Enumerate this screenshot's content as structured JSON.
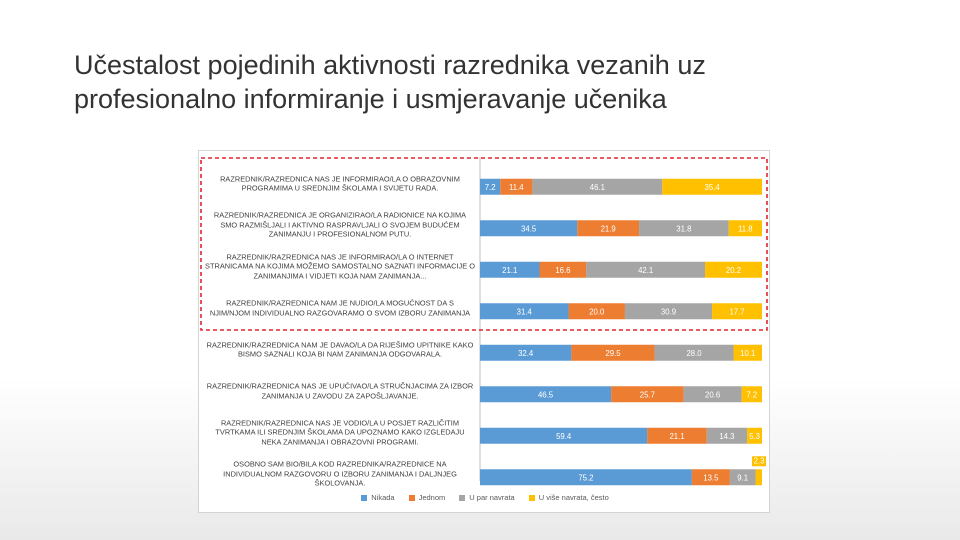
{
  "slide": {
    "title": "Učestalost pojedinih aktivnosti razrednika vezanih uz profesionalno informiranje i usmjeravanje učenika"
  },
  "chart_data": {
    "type": "bar",
    "orientation": "horizontal",
    "stacked": "percent",
    "categories": [
      "RAZREDNIK/RAZREDNICA NAS JE INFORMIRAO/LA O OBRAZOVNIM PROGRAMIMA U SREDNJIM ŠKOLAMA I SVIJETU RADA.",
      "RAZREDNIK/RAZREDNICA JE ORGANIZIRAO/LA RADIONICE NA KOJIMA SMO RAZMIŠLJALI I AKTIVNO RASPRAVLJALI O SVOJEM BUDUĆEM ZANIMANJU I PROFESIONALNOM PUTU.",
      "RAZREDNIK/RAZREDNICA NAS JE INFORMIRAO/LA O INTERNET STRANICAMA NA KOJIMA MOŽEMO SAMOSTALNO SAZNATI INFORMACIJE O ZANIMANJIMA I VIDJETI KOJA NAM ZANIMANJA...",
      "RAZREDNIK/RAZREDNICA NAM JE NUDIO/LA MOGUĆNOST DA S NJIM/NJOM INDIVIDUALNO RAZGOVARAMO O SVOM IZBORU ZANIMANJA",
      "RAZREDNIK/RAZREDNICA NAM JE DAVAO/LA DA RIJEŠIMO UPITNIKE KAKO BISMO SAZNALI KOJA BI NAM ZANIMANJA ODGOVARALA.",
      "RAZREDNIK/RAZREDNICA NAS JE UPUĆIVAO/LA STRUČNJACIMA ZA IZBOR ZANIMANJA U ZAVODU ZA ZAPOŠLJAVANJE.",
      "RAZREDNIK/RAZREDNICA NAS JE VODIO/LA U POSJET RAZLIČITIM TVRTKAMA ILI SREDNJIM ŠKOLAMA DA UPOZNAMO KAKO IZGLEDAJU NEKA ZANIMANJA I OBRAZOVNI PROGRAMI.",
      "OSOBNO SAM BIO/BILA KOD RAZREDNIKA/RAZREDNICE NA INDIVIDUALNOM RAZGOVORU O IZBORU ZANIMANJA I DALJNJEG ŠKOLOVANJA."
    ],
    "series": [
      {
        "name": "Nikada",
        "color": "#5b9bd5",
        "values": [
          7.2,
          34.5,
          21.1,
          31.4,
          32.4,
          46.5,
          59.4,
          75.2
        ]
      },
      {
        "name": "Jednom",
        "color": "#ed7d31",
        "values": [
          11.4,
          21.9,
          16.6,
          20.0,
          29.5,
          25.7,
          21.1,
          13.5
        ]
      },
      {
        "name": "U par navrata",
        "color": "#a5a5a5",
        "values": [
          46.1,
          31.8,
          42.1,
          30.9,
          28.0,
          20.6,
          14.3,
          9.1
        ]
      },
      {
        "name": "U više navrata, često",
        "color": "#ffc000",
        "values": [
          35.4,
          11.8,
          20.2,
          17.7,
          10.1,
          7.2,
          5.3,
          2.3
        ]
      }
    ],
    "xlim": [
      0,
      100
    ],
    "legend_position": "bottom",
    "highlight": {
      "from_category": 0,
      "to_category": 3,
      "color": "#e0262e",
      "style": "dashed"
    }
  }
}
